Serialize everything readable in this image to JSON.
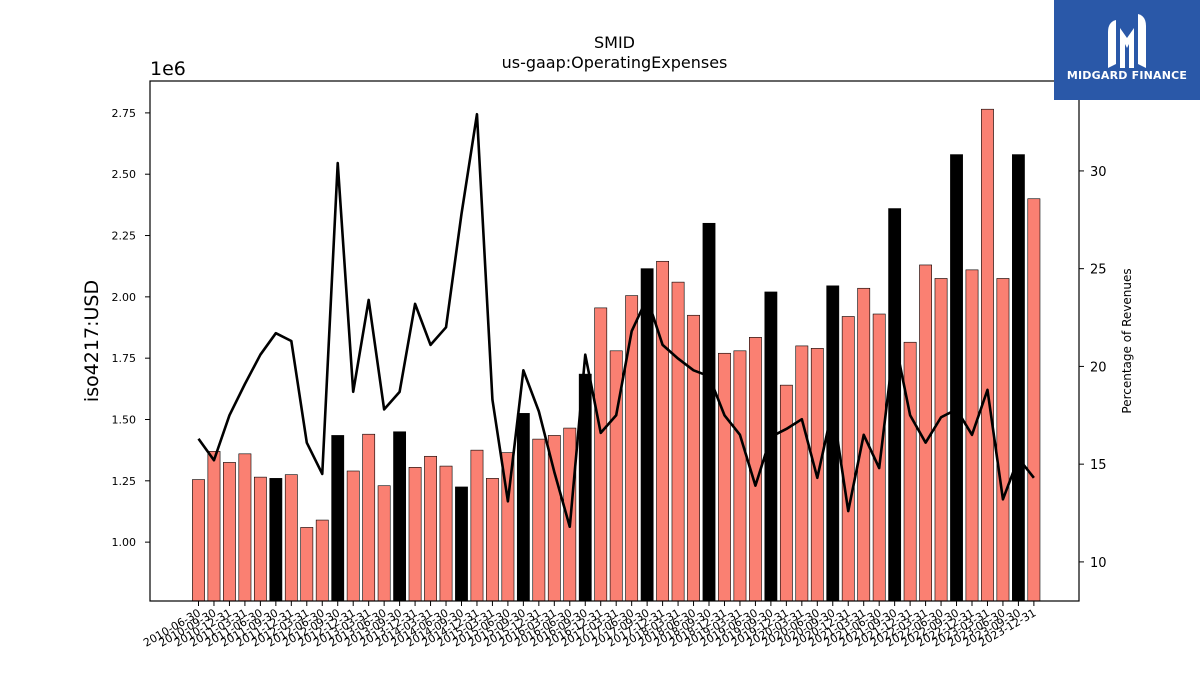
{
  "logo": {
    "name": "MIDGARD FINANCE"
  },
  "chart_data": {
    "type": "bar",
    "title": "SMID",
    "subtitle": "us-gaap:OperatingExpenses",
    "ylabel": "iso4217:USD",
    "y_offset_label": "1e6",
    "y2label": "Percentage of Revenues",
    "ylim": [
      0.76,
      2.88
    ],
    "y2lim": [
      8.0,
      34.6
    ],
    "yticks": [
      "1.00",
      "1.25",
      "1.50",
      "1.75",
      "2.00",
      "2.25",
      "2.50",
      "2.75"
    ],
    "y2ticks": [
      "10",
      "15",
      "20",
      "25",
      "30"
    ],
    "grid": false,
    "colors": {
      "quarter_bar": "#fa8072",
      "annual_bar": "#000000",
      "line": "#000000"
    },
    "categories": [
      "2010-06-30",
      "2010-09-30",
      "2010-12-31",
      "2011-03-31",
      "2011-06-30",
      "2011-09-30",
      "2011-12-31",
      "2012-03-31",
      "2012-06-30",
      "2012-09-30",
      "2012-12-31",
      "2013-03-31",
      "2013-06-30",
      "2013-09-30",
      "2013-12-31",
      "2014-03-31",
      "2014-06-30",
      "2014-09-30",
      "2014-12-31",
      "2015-03-31",
      "2015-06-30",
      "2015-09-30",
      "2015-12-31",
      "2016-03-31",
      "2016-06-30",
      "2016-09-30",
      "2016-12-31",
      "2017-03-31",
      "2017-06-30",
      "2017-09-30",
      "2017-12-31",
      "2018-03-31",
      "2018-06-30",
      "2018-09-30",
      "2018-12-31",
      "2019-03-31",
      "2019-06-30",
      "2019-09-30",
      "2019-12-31",
      "2020-03-31",
      "2020-06-30",
      "2020-09-30",
      "2020-12-31",
      "2021-03-31",
      "2021-06-30",
      "2021-09-30",
      "2021-12-31",
      "2022-03-31",
      "2022-06-30",
      "2022-09-30",
      "2022-12-31",
      "2023-03-31",
      "2023-06-30",
      "2023-09-30",
      "2023-12-31"
    ],
    "series": [
      {
        "kind": "bar",
        "values": [
          1.255,
          1.37,
          1.325,
          1.36,
          1.265,
          1.26,
          1.275,
          1.06,
          1.09,
          1.435,
          1.29,
          1.44,
          1.23,
          1.45,
          1.305,
          1.35,
          1.31,
          1.225,
          1.375,
          1.26,
          1.365,
          1.525,
          1.42,
          1.435,
          1.465,
          1.685,
          1.955,
          1.78,
          2.005,
          2.115,
          2.145,
          2.06,
          1.925,
          2.3,
          1.77,
          1.78,
          1.835,
          2.02,
          1.64,
          1.8,
          1.79,
          2.045,
          1.92,
          2.035,
          1.93,
          2.36,
          1.815,
          2.13,
          2.075,
          2.58,
          2.11,
          2.765,
          2.075,
          2.58,
          2.4
        ],
        "annual": [
          false,
          false,
          false,
          false,
          false,
          true,
          false,
          false,
          false,
          true,
          false,
          false,
          false,
          true,
          false,
          false,
          false,
          true,
          false,
          false,
          false,
          true,
          false,
          false,
          false,
          true,
          false,
          false,
          false,
          true,
          false,
          false,
          false,
          true,
          false,
          false,
          false,
          true,
          false,
          false,
          false,
          true,
          false,
          false,
          false,
          true,
          false,
          false,
          false,
          true,
          false,
          false,
          false,
          true,
          false
        ]
      },
      {
        "kind": "line",
        "axis": "right",
        "values": [
          16.3,
          15.2,
          17.5,
          19.1,
          20.6,
          21.7,
          21.3,
          16.1,
          14.5,
          30.4,
          18.7,
          23.4,
          17.8,
          18.7,
          23.2,
          21.1,
          22.0,
          27.8,
          32.9,
          18.3,
          13.1,
          19.8,
          17.7,
          14.6,
          11.8,
          20.6,
          16.6,
          17.5,
          21.8,
          23.5,
          21.1,
          20.4,
          19.8,
          19.5,
          17.5,
          16.5,
          13.9,
          16.4,
          16.8,
          17.3,
          14.3,
          17.9,
          12.6,
          16.5,
          14.8,
          21.4,
          17.5,
          16.1,
          17.4,
          17.8,
          16.5,
          18.8,
          13.2,
          15.3,
          14.3
        ]
      }
    ]
  }
}
